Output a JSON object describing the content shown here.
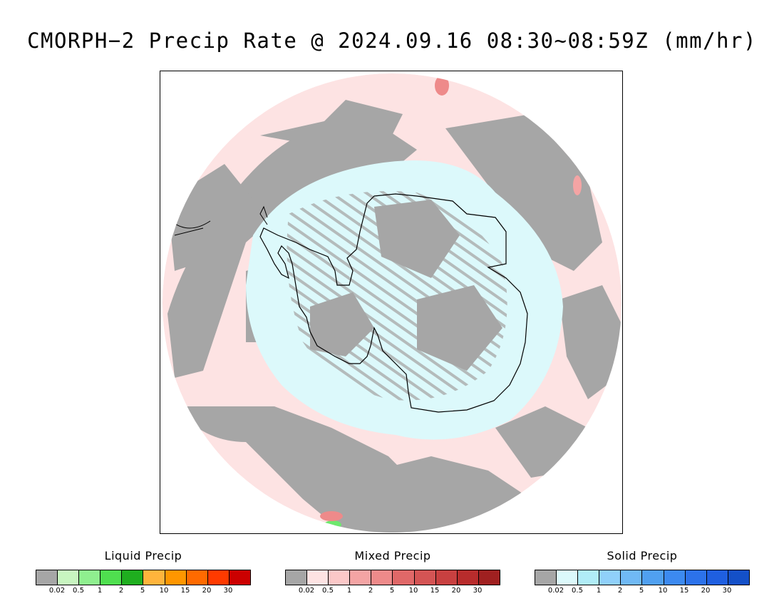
{
  "title": "CMORPH−2 Precip Rate @ 2024.09.16 08:30~08:59Z (mm/hr)",
  "map": {
    "projection": "south polar stereographic",
    "colors": {
      "no_precip": "#a6a6a6",
      "mixed_light": "#fde3e3",
      "solid_light": "#dcf9fb",
      "coastline": "#000000",
      "liquid_light": "#6ee86e"
    }
  },
  "legends": [
    {
      "title": "Liquid Precip",
      "colors": [
        "#a6a6a6",
        "#c8f5c0",
        "#8fef8f",
        "#4fdf4f",
        "#1fae1f",
        "#ffb43c",
        "#ff9600",
        "#ff6a00",
        "#ff3a00",
        "#cc0000"
      ],
      "ticks": [
        "0.02",
        "0.5",
        "1",
        "2",
        "5",
        "10",
        "15",
        "20",
        "30"
      ]
    },
    {
      "title": "Mixed Precip",
      "colors": [
        "#a6a6a6",
        "#fde3e3",
        "#fbc8c8",
        "#f4a4a4",
        "#ee8a8a",
        "#e06868",
        "#d45454",
        "#c84040",
        "#b82c2c",
        "#a02020"
      ],
      "ticks": [
        "0.02",
        "0.5",
        "1",
        "2",
        "5",
        "10",
        "15",
        "20",
        "30"
      ]
    },
    {
      "title": "Solid Precip",
      "colors": [
        "#a6a6a6",
        "#dcf9fb",
        "#b0ecf7",
        "#90d0fa",
        "#70b9f5",
        "#50a0f0",
        "#3c8af0",
        "#2c72ea",
        "#1f5fe0",
        "#1450c8"
      ],
      "ticks": [
        "0.02",
        "0.5",
        "1",
        "2",
        "5",
        "10",
        "15",
        "20",
        "30"
      ]
    }
  ]
}
